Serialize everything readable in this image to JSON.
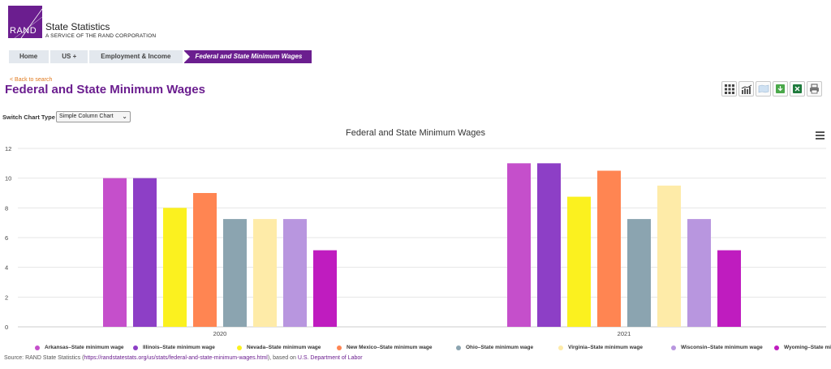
{
  "brand": {
    "logo_text": "RAND",
    "name": "State Statistics",
    "tagline": "A SERVICE OF THE RAND CORPORATION",
    "color": "#6b1e8f"
  },
  "breadcrumb": [
    {
      "label": "Home"
    },
    {
      "label": "US +"
    },
    {
      "label": "Employment & Income"
    },
    {
      "label": "Federal and State Minimum Wages"
    }
  ],
  "back_link": "< Back to search",
  "page_title": "Federal and State Minimum Wages",
  "toolbar_icons": [
    "grid-icon",
    "chart-icon",
    "map-icon",
    "download-icon",
    "excel-icon",
    "print-icon"
  ],
  "switch_chart": {
    "label": "Switch Chart Type",
    "selected": "Simple Column Chart"
  },
  "chart_data": {
    "type": "bar",
    "title": "Federal and State Minimum Wages",
    "categories": [
      "2020",
      "2021"
    ],
    "ylim": [
      0,
      12
    ],
    "yticks": [
      0,
      2,
      4,
      6,
      8,
      10,
      12
    ],
    "grid": true,
    "legend_position": "bottom",
    "series": [
      {
        "name": "Arkansas–State minimum wage",
        "color": "#c54fcb",
        "values": [
          10,
          11
        ]
      },
      {
        "name": "Illinois–State minimum wage",
        "color": "#8d3fc6",
        "values": [
          10,
          11
        ]
      },
      {
        "name": "Nevada–State minimum wage",
        "color": "#fbf11f",
        "values": [
          8,
          8.75
        ]
      },
      {
        "name": "New Mexico–State minimum wage",
        "color": "#ff8552",
        "values": [
          9,
          10.5
        ]
      },
      {
        "name": "Ohio–State minimum wage",
        "color": "#8ba4b0",
        "values": [
          7.25,
          7.25
        ]
      },
      {
        "name": "Virginia–State minimum wage",
        "color": "#feeba8",
        "values": [
          7.25,
          9.5
        ]
      },
      {
        "name": "Wisconsin–State minimum wage",
        "color": "#b896df",
        "values": [
          7.25,
          7.25
        ]
      },
      {
        "name": "Wyoming–State minimum wage",
        "color": "#bf1cbf",
        "values": [
          5.15,
          5.15
        ]
      }
    ]
  },
  "source": {
    "prefix": "Source: RAND State Statistics (",
    "url": "https://randstatestats.org/us/stats/federal-and-state-minimum-wages.html",
    "middle": "), based on ",
    "agency": "U.S. Department of Labor"
  }
}
